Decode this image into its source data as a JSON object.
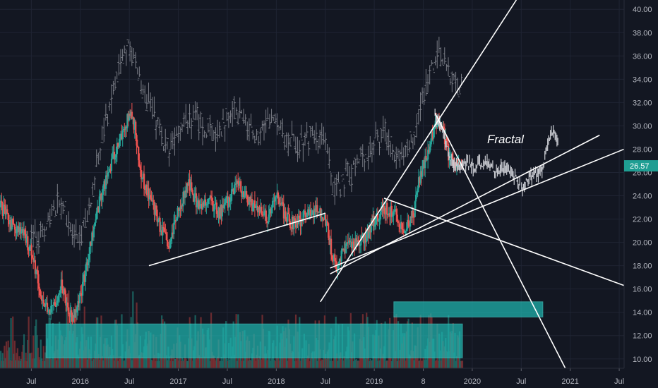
{
  "chart_data": {
    "type": "candlestick",
    "colors": {
      "background": "#131722",
      "grid": "#1f2433",
      "up": "#26a69a",
      "down": "#ef5350",
      "overlay": "#8a8d96",
      "trendline": "#ffffff",
      "zone": "#1fb5b0",
      "axis_text": "#b2b5be",
      "price_tag": "#1f9e93"
    },
    "y_axis": {
      "min": 9.2,
      "max": 40.8,
      "ticks": [
        "10.00",
        "12.00",
        "14.00",
        "16.00",
        "18.00",
        "20.00",
        "22.00",
        "24.00",
        "26.00",
        "28.00",
        "30.00",
        "32.00",
        "34.00",
        "36.00",
        "38.00",
        "40.00"
      ]
    },
    "x_axis": {
      "min": 2015.18,
      "max": 2021.55,
      "ticks": [
        {
          "t": 2015.5,
          "label": "Jul"
        },
        {
          "t": 2016.0,
          "label": "2016"
        },
        {
          "t": 2016.5,
          "label": "Jul"
        },
        {
          "t": 2017.0,
          "label": "2017"
        },
        {
          "t": 2017.5,
          "label": "Jul"
        },
        {
          "t": 2018.0,
          "label": "2018"
        },
        {
          "t": 2018.5,
          "label": "Jul"
        },
        {
          "t": 2019.0,
          "label": "2019"
        },
        {
          "t": 2019.5,
          "label": "8"
        },
        {
          "t": 2020.0,
          "label": "2020"
        },
        {
          "t": 2020.5,
          "label": "Jul"
        },
        {
          "t": 2021.0,
          "label": "2021"
        },
        {
          "t": 2021.5,
          "label": "Jul"
        }
      ]
    },
    "last_price": "26.57",
    "annotation": "Fractal",
    "price_path": [
      [
        2015.18,
        23.0
      ],
      [
        2015.3,
        21.5
      ],
      [
        2015.4,
        20.8
      ],
      [
        2015.5,
        19.2
      ],
      [
        2015.6,
        15.0
      ],
      [
        2015.7,
        14.0
      ],
      [
        2015.8,
        16.5
      ],
      [
        2015.9,
        13.5
      ],
      [
        2016.0,
        15.5
      ],
      [
        2016.1,
        20.0
      ],
      [
        2016.2,
        24.0
      ],
      [
        2016.3,
        26.5
      ],
      [
        2016.4,
        29.0
      ],
      [
        2016.5,
        31.0
      ],
      [
        2016.55,
        30.0
      ],
      [
        2016.6,
        26.0
      ],
      [
        2016.7,
        24.0
      ],
      [
        2016.8,
        21.5
      ],
      [
        2016.9,
        19.5
      ],
      [
        2017.0,
        23.0
      ],
      [
        2017.1,
        25.0
      ],
      [
        2017.2,
        23.0
      ],
      [
        2017.3,
        23.8
      ],
      [
        2017.4,
        22.5
      ],
      [
        2017.5,
        23.5
      ],
      [
        2017.6,
        25.0
      ],
      [
        2017.7,
        23.5
      ],
      [
        2017.8,
        22.8
      ],
      [
        2017.9,
        22.0
      ],
      [
        2018.0,
        24.0
      ],
      [
        2018.1,
        22.0
      ],
      [
        2018.2,
        21.5
      ],
      [
        2018.3,
        22.5
      ],
      [
        2018.4,
        22.8
      ],
      [
        2018.5,
        22.0
      ],
      [
        2018.55,
        19.5
      ],
      [
        2018.6,
        17.8
      ],
      [
        2018.7,
        19.5
      ],
      [
        2018.8,
        20.0
      ],
      [
        2018.9,
        20.5
      ],
      [
        2019.0,
        22.0
      ],
      [
        2019.1,
        23.0
      ],
      [
        2019.2,
        22.5
      ],
      [
        2019.3,
        21.0
      ],
      [
        2019.4,
        22.5
      ],
      [
        2019.45,
        25.5
      ],
      [
        2019.55,
        28.0
      ],
      [
        2019.62,
        30.5
      ],
      [
        2019.7,
        29.5
      ],
      [
        2019.75,
        27.5
      ],
      [
        2019.8,
        27.0
      ],
      [
        2019.9,
        26.5
      ]
    ],
    "overlay_path": [
      [
        2015.5,
        20.0
      ],
      [
        2015.6,
        21.0
      ],
      [
        2015.7,
        22.5
      ],
      [
        2015.8,
        23.5
      ],
      [
        2015.9,
        21.5
      ],
      [
        2016.0,
        20.5
      ],
      [
        2016.1,
        23.0
      ],
      [
        2016.2,
        28.0
      ],
      [
        2016.3,
        32.0
      ],
      [
        2016.4,
        35.0
      ],
      [
        2016.5,
        37.5
      ],
      [
        2016.55,
        35.5
      ],
      [
        2016.6,
        34.0
      ],
      [
        2016.7,
        32.0
      ],
      [
        2016.8,
        29.5
      ],
      [
        2016.9,
        28.0
      ],
      [
        2017.0,
        30.0
      ],
      [
        2017.1,
        31.0
      ],
      [
        2017.2,
        30.5
      ],
      [
        2017.3,
        29.5
      ],
      [
        2017.4,
        29.5
      ],
      [
        2017.5,
        30.5
      ],
      [
        2017.6,
        31.5
      ],
      [
        2017.7,
        30.0
      ],
      [
        2017.8,
        29.5
      ],
      [
        2017.9,
        30.0
      ],
      [
        2018.0,
        31.0
      ],
      [
        2018.1,
        29.0
      ],
      [
        2018.2,
        28.5
      ],
      [
        2018.3,
        29.0
      ],
      [
        2018.4,
        29.5
      ],
      [
        2018.5,
        28.5
      ],
      [
        2018.55,
        26.0
      ],
      [
        2018.6,
        24.5
      ],
      [
        2018.7,
        25.5
      ],
      [
        2018.8,
        26.5
      ],
      [
        2018.9,
        27.5
      ],
      [
        2019.0,
        28.5
      ],
      [
        2019.1,
        29.5
      ],
      [
        2019.2,
        28.0
      ],
      [
        2019.3,
        27.5
      ],
      [
        2019.4,
        29.0
      ],
      [
        2019.45,
        31.0
      ],
      [
        2019.55,
        34.0
      ],
      [
        2019.62,
        36.0
      ],
      [
        2019.7,
        35.5
      ],
      [
        2019.8,
        34.0
      ],
      [
        2019.9,
        33.0
      ]
    ],
    "fractal_path": [
      [
        2019.62,
        31.0
      ],
      [
        2019.7,
        29.5
      ],
      [
        2019.78,
        27.0
      ],
      [
        2019.85,
        26.5
      ],
      [
        2019.95,
        26.8
      ],
      [
        2020.05,
        26.5
      ],
      [
        2020.15,
        26.8
      ],
      [
        2020.25,
        26.2
      ],
      [
        2020.35,
        26.5
      ],
      [
        2020.45,
        25.5
      ],
      [
        2020.5,
        24.5
      ],
      [
        2020.58,
        25.5
      ],
      [
        2020.65,
        26.0
      ],
      [
        2020.72,
        26.2
      ],
      [
        2020.76,
        28.0
      ],
      [
        2020.8,
        29.5
      ],
      [
        2020.85,
        29.2
      ],
      [
        2020.88,
        28.5
      ]
    ],
    "trendlines": [
      [
        [
          2016.7,
          18.0
        ],
        [
          2018.5,
          22.5
        ]
      ],
      [
        [
          2018.55,
          17.3
        ],
        [
          2021.3,
          29.2
        ]
      ],
      [
        [
          2018.45,
          14.9
        ],
        [
          2020.45,
          40.8
        ]
      ],
      [
        [
          2019.62,
          31.1
        ],
        [
          2020.95,
          9.2
        ]
      ],
      [
        [
          2019.1,
          23.8
        ],
        [
          2021.55,
          16.3
        ]
      ],
      [
        [
          2018.55,
          17.8
        ],
        [
          2021.55,
          28.0
        ]
      ]
    ],
    "zones": [
      {
        "x0": 2015.65,
        "x1": 2019.9,
        "y0": 10.1,
        "y1": 13.0
      },
      {
        "x0": 2019.2,
        "x1": 2020.72,
        "y0": 13.6,
        "y1": 14.9
      }
    ]
  }
}
